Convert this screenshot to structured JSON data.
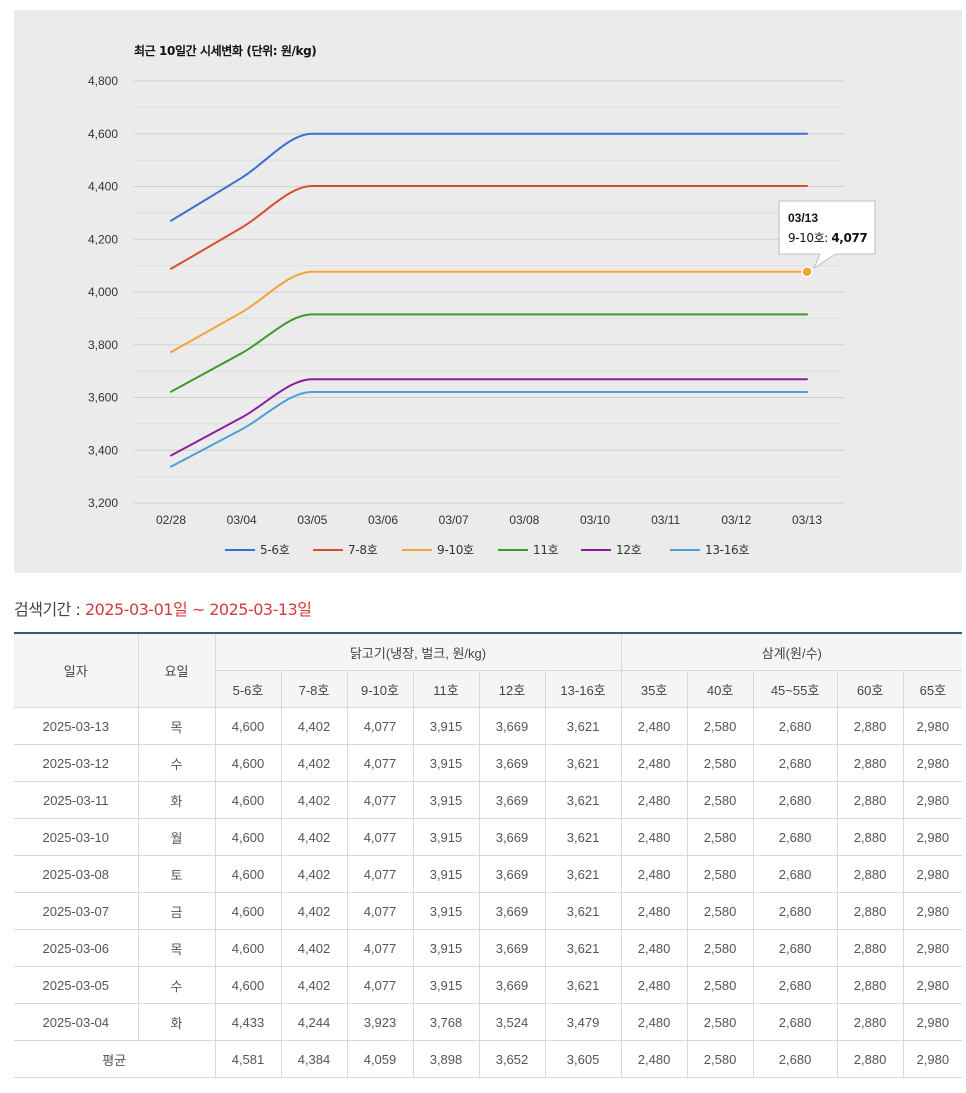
{
  "chart_data": {
    "type": "line",
    "title": "최근 10일간 시세변화 (단위: 원/kg)",
    "categories": [
      "02/28",
      "03/04",
      "03/05",
      "03/06",
      "03/07",
      "03/08",
      "03/10",
      "03/11",
      "03/12",
      "03/13"
    ],
    "ylim": [
      3200,
      4800
    ],
    "yticks": [
      "3,200",
      "3,400",
      "3,600",
      "3,800",
      "4,000",
      "4,200",
      "4,400",
      "4,600",
      "4,800"
    ],
    "grid": true,
    "legend_position": "bottom",
    "series": [
      {
        "name": "5-6호",
        "color": "#3a6fd2",
        "values": [
          4270,
          4433,
          4600,
          4600,
          4600,
          4600,
          4600,
          4600,
          4600,
          4600
        ]
      },
      {
        "name": "7-8호",
        "color": "#d94e2f",
        "values": [
          4088,
          4244,
          4402,
          4402,
          4402,
          4402,
          4402,
          4402,
          4402,
          4402
        ]
      },
      {
        "name": "9-10호",
        "color": "#f4a23a",
        "values": [
          3772,
          3923,
          4077,
          4077,
          4077,
          4077,
          4077,
          4077,
          4077,
          4077
        ]
      },
      {
        "name": "11호",
        "color": "#3f9a2c",
        "values": [
          3622,
          3768,
          3915,
          3915,
          3915,
          3915,
          3915,
          3915,
          3915,
          3915
        ]
      },
      {
        "name": "12호",
        "color": "#8b1f9a",
        "values": [
          3380,
          3524,
          3669,
          3669,
          3669,
          3669,
          3669,
          3669,
          3669,
          3669
        ]
      },
      {
        "name": "13-16호",
        "color": "#4aa0d6",
        "values": [
          3338,
          3479,
          3621,
          3621,
          3621,
          3621,
          3621,
          3621,
          3621,
          3621
        ]
      }
    ],
    "tooltip": {
      "date": "03/13",
      "series_label": "9-10호: ",
      "value": "4,077",
      "series_index": 2,
      "point_index": 9
    }
  },
  "search": {
    "label": "검색기간 : ",
    "range": "2025-03-01일 ~ 2025-03-13일"
  },
  "table": {
    "col_date": "일자",
    "col_day": "요일",
    "group1": "닭고기(냉장, 벌크, 원/kg)",
    "group2": "삼계(원/수)",
    "sub_headers": [
      "5-6호",
      "7-8호",
      "9-10호",
      "11호",
      "12호",
      "13-16호",
      "35호",
      "40호",
      "45~55호",
      "60호",
      "65호"
    ],
    "rows": [
      {
        "date": "2025-03-13",
        "day": "목",
        "values": [
          "4,600",
          "4,402",
          "4,077",
          "3,915",
          "3,669",
          "3,621",
          "2,480",
          "2,580",
          "2,680",
          "2,880",
          "2,980"
        ]
      },
      {
        "date": "2025-03-12",
        "day": "수",
        "values": [
          "4,600",
          "4,402",
          "4,077",
          "3,915",
          "3,669",
          "3,621",
          "2,480",
          "2,580",
          "2,680",
          "2,880",
          "2,980"
        ]
      },
      {
        "date": "2025-03-11",
        "day": "화",
        "values": [
          "4,600",
          "4,402",
          "4,077",
          "3,915",
          "3,669",
          "3,621",
          "2,480",
          "2,580",
          "2,680",
          "2,880",
          "2,980"
        ]
      },
      {
        "date": "2025-03-10",
        "day": "월",
        "values": [
          "4,600",
          "4,402",
          "4,077",
          "3,915",
          "3,669",
          "3,621",
          "2,480",
          "2,580",
          "2,680",
          "2,880",
          "2,980"
        ]
      },
      {
        "date": "2025-03-08",
        "day": "토",
        "values": [
          "4,600",
          "4,402",
          "4,077",
          "3,915",
          "3,669",
          "3,621",
          "2,480",
          "2,580",
          "2,680",
          "2,880",
          "2,980"
        ]
      },
      {
        "date": "2025-03-07",
        "day": "금",
        "values": [
          "4,600",
          "4,402",
          "4,077",
          "3,915",
          "3,669",
          "3,621",
          "2,480",
          "2,580",
          "2,680",
          "2,880",
          "2,980"
        ]
      },
      {
        "date": "2025-03-06",
        "day": "목",
        "values": [
          "4,600",
          "4,402",
          "4,077",
          "3,915",
          "3,669",
          "3,621",
          "2,480",
          "2,580",
          "2,680",
          "2,880",
          "2,980"
        ]
      },
      {
        "date": "2025-03-05",
        "day": "수",
        "values": [
          "4,600",
          "4,402",
          "4,077",
          "3,915",
          "3,669",
          "3,621",
          "2,480",
          "2,580",
          "2,680",
          "2,880",
          "2,980"
        ]
      },
      {
        "date": "2025-03-04",
        "day": "화",
        "values": [
          "4,433",
          "4,244",
          "3,923",
          "3,768",
          "3,524",
          "3,479",
          "2,480",
          "2,580",
          "2,680",
          "2,880",
          "2,980"
        ]
      }
    ],
    "average": {
      "label": "평균",
      "values": [
        "4,581",
        "4,384",
        "4,059",
        "3,898",
        "3,652",
        "3,605",
        "2,480",
        "2,580",
        "2,680",
        "2,880",
        "2,980"
      ]
    }
  }
}
